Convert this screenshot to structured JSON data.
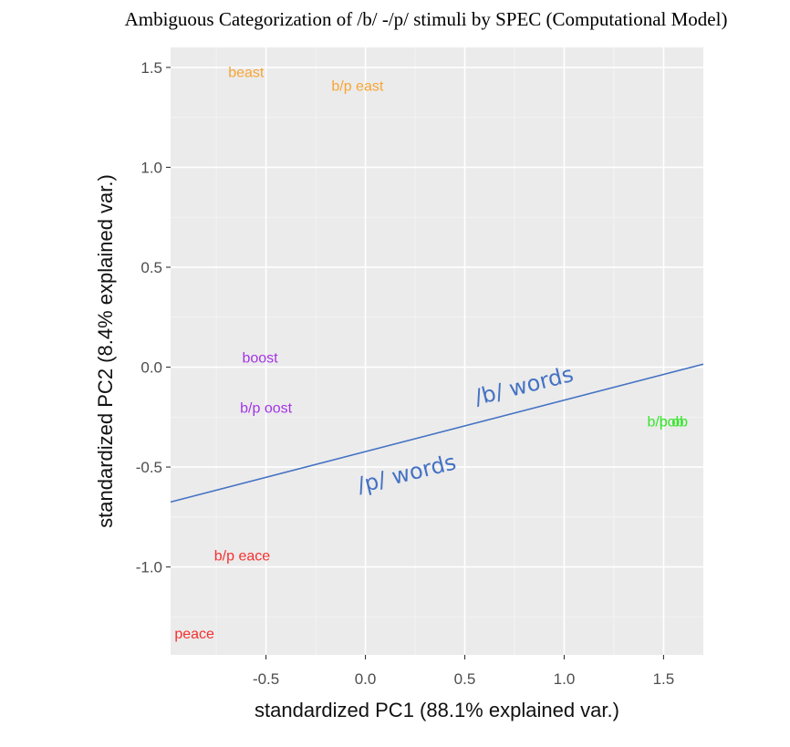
{
  "chart_data": {
    "type": "scatter",
    "title": "Ambiguous Categorization of /b/ -/p/ stimuli by SPEC (Computational Model)",
    "xlabel": "standardized PC1 (88.1% explained var.)",
    "ylabel": "standardized PC2 (8.4% explained var.)",
    "xlim": [
      -0.98,
      1.7
    ],
    "ylim": [
      -1.44,
      1.6
    ],
    "xticks": [
      -0.5,
      0.0,
      0.5,
      1.0,
      1.5
    ],
    "xtick_labels": [
      "-0.5",
      "0.0",
      "0.5",
      "1.0",
      "1.5"
    ],
    "yticks": [
      -1.0,
      -0.5,
      0.0,
      0.5,
      1.0,
      1.5
    ],
    "ytick_labels": [
      "-1.0",
      "-0.5",
      "0.0",
      "0.5",
      "1.0",
      "1.5"
    ],
    "grid": true,
    "background": "#ebebeb",
    "points": [
      {
        "label": "beast",
        "x": -0.6,
        "y": 1.48,
        "color": "#f7a535"
      },
      {
        "label": "b/p east",
        "x": -0.04,
        "y": 1.41,
        "color": "#f7a535"
      },
      {
        "label": "boost",
        "x": -0.53,
        "y": 0.05,
        "color": "#a335e6"
      },
      {
        "label": "b/p oost",
        "x": -0.5,
        "y": -0.2,
        "color": "#a335e6"
      },
      {
        "label": "b/p eace",
        "x": -0.62,
        "y": -0.94,
        "color": "#f53030"
      },
      {
        "label": "peace",
        "x": -0.86,
        "y": -1.33,
        "color": "#f53030"
      },
      {
        "label": "b/p ob",
        "x": 1.52,
        "y": -0.27,
        "color": "#36e62c"
      },
      {
        "label": "bob",
        "x": 1.54,
        "y": -0.27,
        "color": "#36e62c"
      }
    ],
    "boundary_line": {
      "x1": -0.98,
      "y1": -0.675,
      "x2": 1.7,
      "y2": 0.015,
      "color": "#4472c4"
    },
    "annotations": [
      {
        "text": "/b/ words",
        "x": 0.56,
        "y": -0.19,
        "angle": -14
      },
      {
        "text": "/p/ words",
        "x": -0.03,
        "y": -0.63,
        "angle": -14
      }
    ]
  }
}
